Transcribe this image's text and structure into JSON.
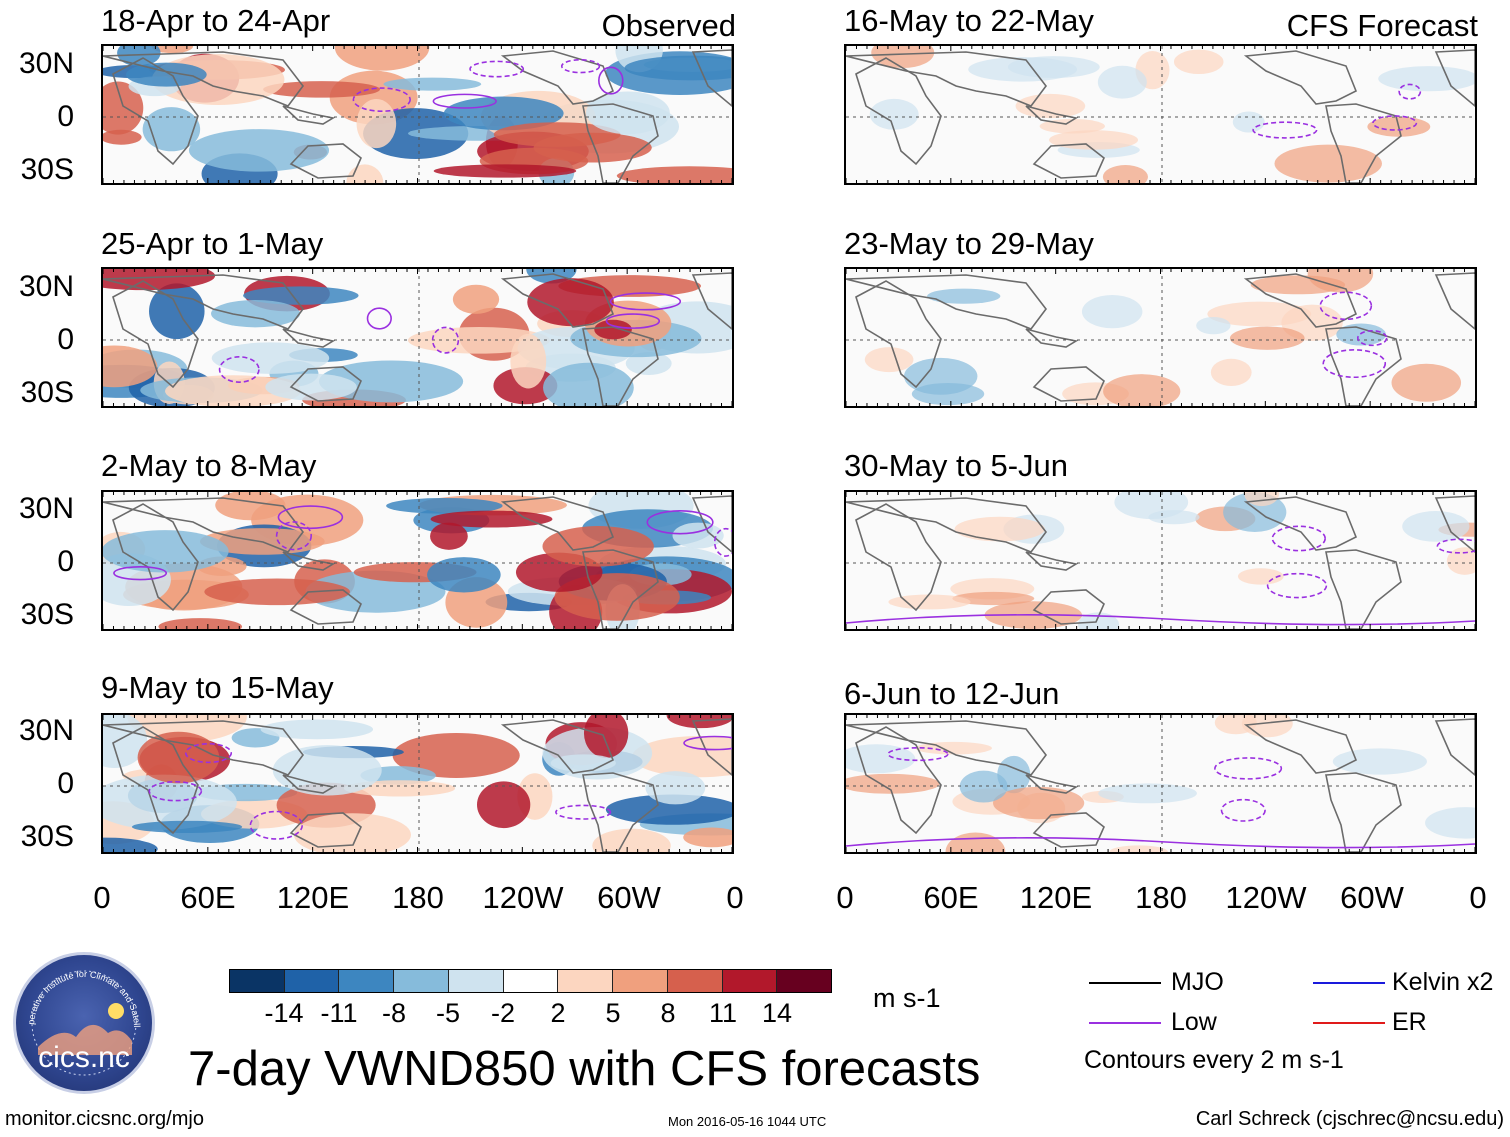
{
  "labels": {
    "observed": "Observed",
    "forecast": "CFS Forecast"
  },
  "panels": {
    "left": [
      "18-Apr to 24-Apr",
      "25-Apr to 1-May",
      "2-May to 8-May",
      "9-May to 15-May"
    ],
    "right": [
      "16-May to 22-May",
      "23-May to 29-May",
      "30-May to 5-Jun",
      "6-Jun to 12-Jun"
    ]
  },
  "lat_labels": [
    "30N",
    "0",
    "30S"
  ],
  "lon_labels": [
    "0",
    "60E",
    "120E",
    "180",
    "120W",
    "60W",
    "0"
  ],
  "colorbar": {
    "ticks": [
      "-14",
      "-11",
      "-8",
      "-5",
      "-2",
      "2",
      "5",
      "8",
      "11",
      "14"
    ],
    "colors": [
      "#0a3465",
      "#1f62a8",
      "#3d86c0",
      "#86bbdb",
      "#cfe3ef",
      "#ffffff",
      "#fcd6c0",
      "#f0a07e",
      "#d6604d",
      "#b2182b",
      "#67001f"
    ],
    "units": "m s-1"
  },
  "legend": {
    "mjo": "MJO",
    "kelvin": "Kelvin x2",
    "low": "Low",
    "er": "ER",
    "contours": "Contours every 2 m s-1",
    "colors": {
      "mjo": "#000000",
      "kelvin": "#1a1adc",
      "low": "#9a30e0",
      "er": "#e01a1a"
    }
  },
  "title": "7-day VWND850 with CFS forecasts",
  "logo": {
    "arc_text": "Cooperative Institute for Climate and Satellites",
    "name": "cics.nc"
  },
  "footer": {
    "url": "monitor.cicsnc.org/mjo",
    "timestamp": "Mon 2016-05-16 1044 UTC",
    "author": "Carl Schreck (cjschrec@ncsu.edu)"
  }
}
